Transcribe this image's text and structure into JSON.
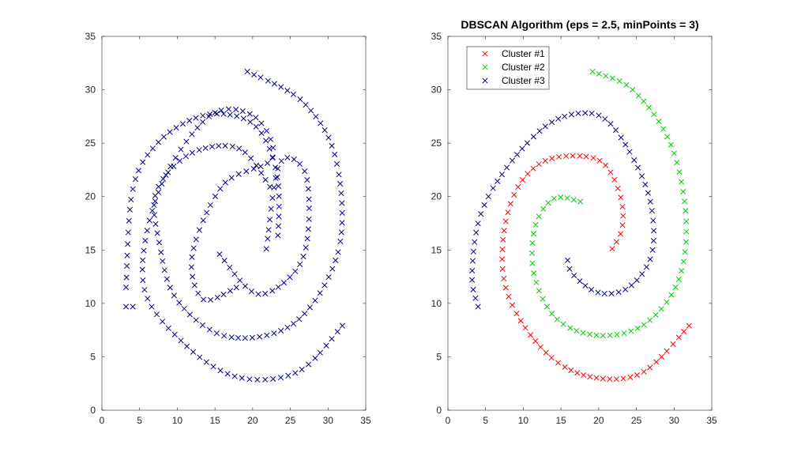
{
  "chart_data": [
    {
      "type": "scatter",
      "title": "",
      "xlabel": "",
      "ylabel": "",
      "xlim": [
        0,
        35
      ],
      "ylim": [
        0,
        35
      ],
      "xticks": [
        0,
        5,
        10,
        15,
        20,
        25,
        30,
        35
      ],
      "yticks": [
        0,
        5,
        10,
        15,
        20,
        25,
        30,
        35
      ],
      "grid": false,
      "marker": "x",
      "series": [
        {
          "color": "#00008b",
          "arms": [
            {
              "x": [
                19.3,
                26.6,
                31.0,
                31.4,
                25.6,
                16.6,
                9.9,
                7.6,
                7.2,
                11.7,
                18.2,
                22.4
              ],
              "y": [
                31.7,
                28.9,
                23.6,
                15.0,
                8.2,
                6.9,
                10.4,
                15.7,
                20.4,
                24.0,
                24.5,
                20.8
              ]
            },
            {
              "x": [
                31.9,
                26.0,
                18.0,
                10.8,
                5.5,
                7.6,
                14.2,
                20.2,
                22.6,
                16.1,
                12.0,
                13.4,
                17.9
              ],
              "y": [
                7.9,
                3.6,
                3.1,
                6.3,
                11.8,
                20.6,
                27.5,
                27.5,
                23.6,
                21.1,
                14.6,
                10.4,
                11.5
              ]
            },
            {
              "x": [
                3.2,
                4.1,
                7.5,
                13.0,
                18.0,
                21.3,
                23.3,
                23.4,
                23.0
              ],
              "y": [
                11.5,
                20.7,
                25.1,
                27.5,
                27.5,
                25.8,
                21.7,
                16.8,
                15.7
              ]
            },
            {
              "x": [
                15.6,
                20.5,
                25.4,
                27.3,
                27.0,
                23.6,
                21.8
              ],
              "y": [
                14.6,
                10.9,
                12.8,
                16.3,
                22.2,
                23.1,
                15.0
              ]
            },
            {
              "x": [
                3.2,
                4.1
              ],
              "y": [
                9.7,
                9.7
              ]
            }
          ]
        }
      ]
    },
    {
      "type": "scatter",
      "title": "DBSCAN Algorithm (eps = 2.5, minPoints = 3)",
      "xlabel": "",
      "ylabel": "",
      "xlim": [
        0,
        35
      ],
      "ylim": [
        0,
        35
      ],
      "xticks": [
        0,
        5,
        10,
        15,
        20,
        25,
        30,
        35
      ],
      "yticks": [
        0,
        5,
        10,
        15,
        20,
        25,
        30,
        35
      ],
      "grid": false,
      "marker": "x",
      "legend": {
        "position": "top-left"
      },
      "series": [
        {
          "name": "Cluster #1",
          "color": "#ff0000",
          "arms": [
            {
              "x": [
                32.0,
                26.0,
                20.0,
                14.5,
                10.0,
                7.5,
                7.4,
                9.0,
                12.0,
                16.0,
                20.5,
                22.9,
                23.1,
                21.7
              ],
              "y": [
                7.9,
                3.6,
                3.0,
                4.5,
                8.0,
                12.0,
                16.5,
                20.5,
                23.0,
                23.8,
                23.2,
                20.0,
                17.0,
                15.0
              ]
            }
          ]
        },
        {
          "name": "Cluster #2",
          "color": "#00cc00",
          "arms": [
            {
              "x": [
                19.2,
                24.5,
                29.5,
                31.6,
                30.5,
                26.0,
                20.0,
                14.5,
                11.5,
                11.5,
                14.0,
                17.8
              ],
              "y": [
                31.7,
                30.0,
                25.0,
                18.0,
                12.0,
                8.0,
                7.0,
                8.5,
                12.5,
                17.0,
                19.8,
                19.5
              ]
            }
          ]
        },
        {
          "name": "Cluster #3",
          "color": "#00008b",
          "arms": [
            {
              "x": [
                4.0,
                3.2,
                4.2,
                7.6,
                12.8,
                17.5,
                21.3,
                25.0,
                27.0,
                27.0,
                24.0,
                20.0,
                16.5,
                15.8
              ],
              "y": [
                9.7,
                12.5,
                18.0,
                22.5,
                26.5,
                27.8,
                27.0,
                23.0,
                19.0,
                14.5,
                11.5,
                11.0,
                12.8,
                14.5
              ]
            }
          ]
        }
      ]
    }
  ]
}
